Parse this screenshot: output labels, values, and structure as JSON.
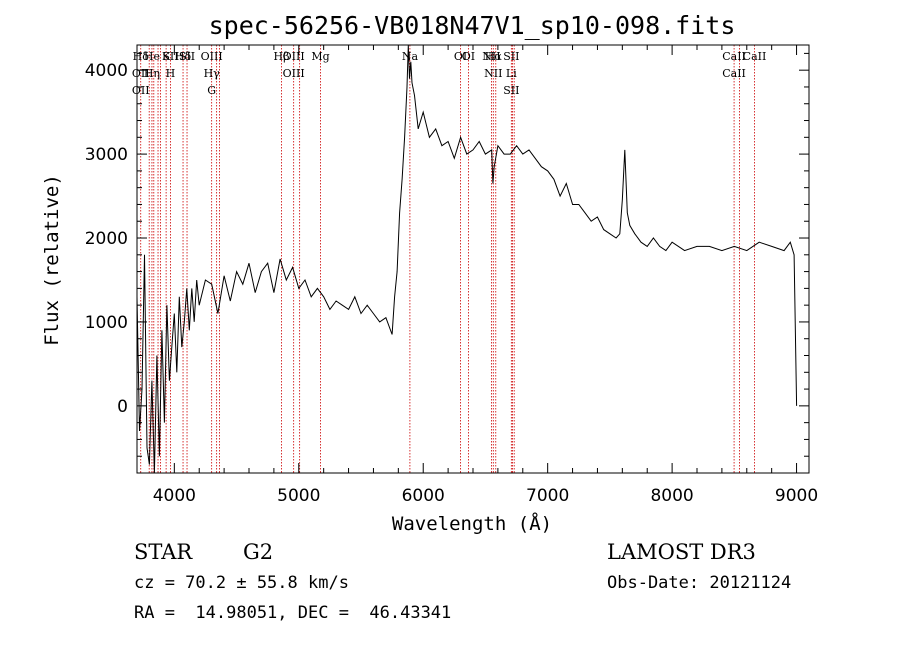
{
  "chart_data": {
    "type": "line",
    "title": "spec-56256-VB018N47V1_sp10-098.fits",
    "xlabel": "Wavelength (Å)",
    "ylabel": "Flux (relative)",
    "xlim": [
      3700,
      9100
    ],
    "ylim": [
      -800,
      4300
    ],
    "x_ticks": [
      4000,
      5000,
      6000,
      7000,
      8000,
      9000
    ],
    "y_ticks": [
      0,
      1000,
      2000,
      3000,
      4000
    ],
    "line_color": "#000000",
    "marker_color": "#cc0000",
    "series": [
      {
        "x": [
          3700,
          3720,
          3740,
          3760,
          3780,
          3800,
          3820,
          3840,
          3860,
          3880,
          3900,
          3920,
          3940,
          3960,
          3980,
          4000,
          4020,
          4040,
          4060,
          4080,
          4100,
          4120,
          4140,
          4160,
          4180,
          4200,
          4250,
          4300,
          4350,
          4400,
          4450,
          4500,
          4550,
          4600,
          4650,
          4700,
          4750,
          4800,
          4850,
          4900,
          4950,
          5000,
          5050,
          5100,
          5150,
          5200,
          5250,
          5300,
          5350,
          5400,
          5450,
          5500,
          5550,
          5600,
          5650,
          5700,
          5750,
          5770,
          5790,
          5810,
          5830,
          5850,
          5870,
          5880,
          5890,
          5900,
          5910,
          5930,
          5960,
          6000,
          6050,
          6100,
          6150,
          6200,
          6250,
          6300,
          6350,
          6400,
          6450,
          6500,
          6550,
          6560,
          6570,
          6600,
          6650,
          6700,
          6750,
          6800,
          6850,
          6900,
          6950,
          7000,
          7050,
          7100,
          7150,
          7200,
          7250,
          7300,
          7350,
          7400,
          7450,
          7500,
          7550,
          7580,
          7600,
          7620,
          7640,
          7660,
          7700,
          7750,
          7800,
          7850,
          7900,
          7950,
          8000,
          8100,
          8200,
          8300,
          8400,
          8500,
          8600,
          8700,
          8800,
          8900,
          8950,
          8980,
          9000
        ],
        "y": [
          1300,
          -300,
          200,
          1800,
          -500,
          -700,
          300,
          -800,
          600,
          -600,
          900,
          -200,
          1200,
          300,
          700,
          1100,
          400,
          1300,
          700,
          1000,
          1400,
          900,
          1400,
          1000,
          1500,
          1200,
          1500,
          1450,
          1100,
          1550,
          1250,
          1600,
          1450,
          1700,
          1350,
          1600,
          1700,
          1350,
          1750,
          1500,
          1650,
          1400,
          1500,
          1300,
          1400,
          1300,
          1150,
          1250,
          1200,
          1150,
          1300,
          1100,
          1200,
          1100,
          1000,
          1050,
          850,
          1300,
          1600,
          2300,
          2700,
          3200,
          3800,
          4300,
          3900,
          4100,
          3850,
          3700,
          3300,
          3500,
          3200,
          3300,
          3100,
          3150,
          2950,
          3200,
          3000,
          3050,
          3150,
          3000,
          3050,
          2650,
          2850,
          3100,
          3000,
          3000,
          3100,
          3000,
          3050,
          2950,
          2850,
          2800,
          2700,
          2500,
          2650,
          2400,
          2400,
          2300,
          2200,
          2250,
          2100,
          2050,
          2000,
          2050,
          2450,
          3050,
          2300,
          2150,
          2050,
          1950,
          1900,
          2000,
          1900,
          1850,
          1950,
          1850,
          1900,
          1900,
          1850,
          1900,
          1850,
          1950,
          1900,
          1850,
          1950,
          1800,
          0
        ]
      }
    ],
    "lines": [
      {
        "x": 3730,
        "labels": [
          "Hδ",
          "OII",
          "OII"
        ],
        "row": "left-stack"
      },
      {
        "x": 3798,
        "labels": [],
        "row": ""
      },
      {
        "x": 3820,
        "labels": [
          "He",
          "Hη"
        ],
        "row": "he"
      },
      {
        "x": 3835,
        "labels": [],
        "row": ""
      },
      {
        "x": 3869,
        "labels": [],
        "row": ""
      },
      {
        "x": 3889,
        "labels": [],
        "row": ""
      },
      {
        "x": 3934,
        "labels": [
          "K"
        ],
        "row": "k"
      },
      {
        "x": 3969,
        "labels": [
          "SII",
          "H"
        ],
        "row": "h"
      },
      {
        "x": 4070,
        "labels": [
          "Hδ"
        ],
        "row": "hd"
      },
      {
        "x": 4102,
        "labels": [
          "SII"
        ],
        "row": "sii"
      },
      {
        "x": 4300,
        "labels": [
          "OIII",
          "Hγ",
          "G"
        ],
        "row": "g"
      },
      {
        "x": 4340,
        "labels": [],
        "row": ""
      },
      {
        "x": 4363,
        "labels": [],
        "row": ""
      },
      {
        "x": 4861,
        "labels": [
          "Hβ"
        ],
        "row": "hb"
      },
      {
        "x": 4959,
        "labels": [
          "OIII",
          "OIII"
        ],
        "row": "oiii"
      },
      {
        "x": 5007,
        "labels": [],
        "row": ""
      },
      {
        "x": 5175,
        "labels": [
          "Mg"
        ],
        "row": "mg"
      },
      {
        "x": 5893,
        "labels": [
          "Na"
        ],
        "row": "na"
      },
      {
        "x": 6300,
        "labels": [
          "OI"
        ],
        "row": "oi"
      },
      {
        "x": 6363,
        "labels": [
          "OI"
        ],
        "row": "oi2"
      },
      {
        "x": 6548,
        "labels": [
          "NII"
        ],
        "row": "nii"
      },
      {
        "x": 6563,
        "labels": [
          "Hα",
          "NII"
        ],
        "row": "ha"
      },
      {
        "x": 6583,
        "labels": [],
        "row": ""
      },
      {
        "x": 6708,
        "labels": [
          "SII",
          "Li",
          "SII"
        ],
        "row": "sii2"
      },
      {
        "x": 6717,
        "labels": [],
        "row": ""
      },
      {
        "x": 6731,
        "labels": [],
        "row": ""
      },
      {
        "x": 8498,
        "labels": [
          "CaII",
          "CaII"
        ],
        "row": "ca1"
      },
      {
        "x": 8542,
        "labels": [],
        "row": ""
      },
      {
        "x": 8662,
        "labels": [
          "CaII"
        ],
        "row": "ca3"
      }
    ]
  },
  "info": {
    "object_class": "STAR",
    "subclass": "G2",
    "redshift": "cz = 70.2 ± 55.8 km/s",
    "coords": "RA =  14.98051, DEC =  46.43341",
    "survey": "LAMOST DR3",
    "obs_date": "Obs-Date: 20121124"
  }
}
